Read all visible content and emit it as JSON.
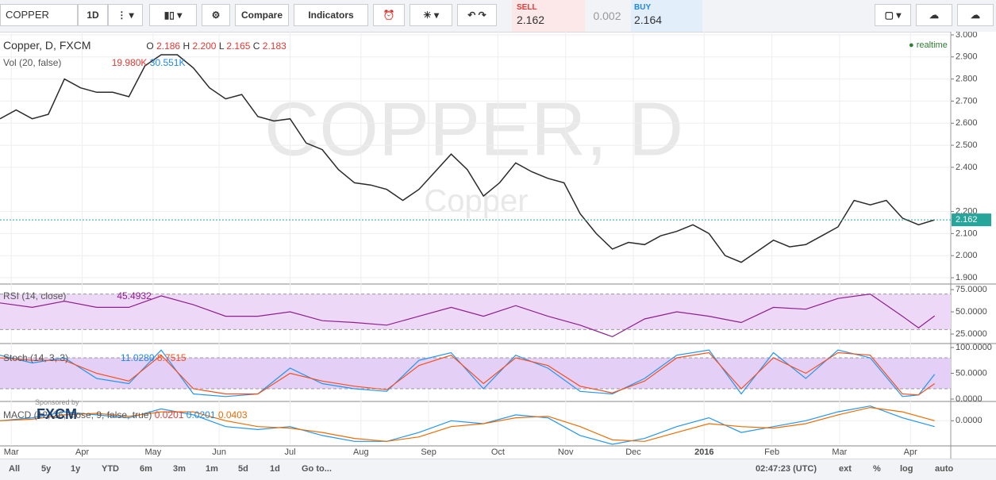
{
  "toolbar": {
    "symbol": "COPPER",
    "interval": "1D",
    "compare": "Compare",
    "indicators": "Indicators",
    "sell_label": "SELL",
    "sell": "2.162",
    "spread": "0.002",
    "buy_label": "BUY",
    "buy": "2.164"
  },
  "legend": {
    "title": "Copper, D, FXCM",
    "o_label": "O",
    "o": "2.186",
    "h_label": "H",
    "h": "2.200",
    "l_label": "L",
    "l": "2.165",
    "c_label": "C",
    "c": "2.183",
    "vol": "Vol (20, false)",
    "vol1": "19.980K",
    "vol2": "30.551K",
    "realtime": "realtime",
    "rsi": "RSI (14, close)",
    "rsi_value": "45.4932",
    "stoch": "Stoch (14, 3, 3)",
    "stoch_k": "11.0280",
    "stoch_d": "8.7515",
    "macd": "MACD (12, 26, close, 9, false, true)",
    "macd_1": "0.0201",
    "macd_2": "0.0201",
    "macd_3": "0.0403"
  },
  "watermark": {
    "symbol": "COPPER, D",
    "name": "Copper"
  },
  "sponsor": {
    "text": "Sponsored by",
    "brand": "FXCM"
  },
  "chart_data": [
    {
      "type": "line",
      "title": "Copper, D, FXCM",
      "x": [
        0,
        1,
        2,
        3,
        4,
        5,
        6,
        7,
        8,
        9,
        10,
        11,
        12,
        13,
        14,
        15,
        16,
        17,
        18,
        19,
        20,
        21,
        22,
        23,
        24,
        25,
        26,
        27,
        28,
        29,
        30,
        31,
        32,
        33,
        34,
        35,
        36,
        37,
        38,
        39,
        40,
        41,
        42,
        43,
        44,
        45,
        46,
        47,
        48,
        49,
        50,
        51,
        52,
        53,
        54,
        55,
        56,
        57,
        58
      ],
      "series": [
        {
          "name": "Copper",
          "color": "#2a2a2a",
          "values": [
            2.62,
            2.66,
            2.62,
            2.64,
            2.8,
            2.76,
            2.74,
            2.74,
            2.72,
            2.86,
            2.91,
            2.91,
            2.85,
            2.76,
            2.71,
            2.73,
            2.63,
            2.61,
            2.62,
            2.51,
            2.48,
            2.39,
            2.33,
            2.32,
            2.3,
            2.25,
            2.3,
            2.38,
            2.46,
            2.39,
            2.27,
            2.33,
            2.42,
            2.38,
            2.35,
            2.33,
            2.19,
            2.1,
            2.03,
            2.06,
            2.05,
            2.09,
            2.11,
            2.14,
            2.1,
            2.0,
            1.97,
            2.02,
            2.07,
            2.04,
            2.05,
            2.09,
            2.13,
            2.25,
            2.23,
            2.25,
            2.17,
            2.14,
            2.162
          ]
        }
      ],
      "xlim": [
        0,
        59
      ],
      "xticks": [
        {
          "value": 0.7,
          "label": "Mar"
        },
        {
          "value": 5.1,
          "label": "Apr"
        },
        {
          "value": 9.5,
          "label": "May"
        },
        {
          "value": 13.6,
          "label": "Jun"
        },
        {
          "value": 18.0,
          "label": "Jul"
        },
        {
          "value": 22.4,
          "label": "Aug"
        },
        {
          "value": 26.6,
          "label": "Sep"
        },
        {
          "value": 30.9,
          "label": "Oct"
        },
        {
          "value": 35.1,
          "label": "Nov"
        },
        {
          "value": 39.3,
          "label": "Dec"
        },
        {
          "value": 43.7,
          "label": "2016"
        },
        {
          "value": 47.9,
          "label": "Feb"
        },
        {
          "value": 52.1,
          "label": "Mar"
        },
        {
          "value": 56.5,
          "label": "Apr"
        }
      ],
      "ylim": [
        1.875,
        3.007
      ],
      "yticks": [
        {
          "value": 1.9,
          "label": "1.900"
        },
        {
          "value": 2.0,
          "label": "2.000"
        },
        {
          "value": 2.1,
          "label": "2.100"
        },
        {
          "value": 2.2,
          "label": "2.200"
        },
        {
          "value": 2.4,
          "label": "2.400"
        },
        {
          "value": 2.5,
          "label": "2.500"
        },
        {
          "value": 2.6,
          "label": "2.600"
        },
        {
          "value": 2.7,
          "label": "2.700"
        },
        {
          "value": 2.8,
          "label": "2.800"
        },
        {
          "value": 2.9,
          "label": "2.900"
        },
        {
          "value": 3.0,
          "label": "3.000"
        }
      ],
      "grid": true
    },
    {
      "type": "line",
      "title": "RSI (14, close)",
      "x": [
        0,
        2,
        4,
        6,
        8,
        10,
        12,
        14,
        16,
        18,
        20,
        22,
        24,
        26,
        28,
        30,
        32,
        34,
        36,
        38,
        40,
        42,
        44,
        46,
        48,
        50,
        52,
        54,
        56,
        57,
        58
      ],
      "series": [
        {
          "name": "RSI",
          "color": "#8e1f8e",
          "values": [
            60,
            55,
            62,
            55,
            55,
            68,
            58,
            45,
            45,
            50,
            40,
            38,
            35,
            45,
            55,
            45,
            57,
            45,
            35,
            22,
            42,
            50,
            45,
            38,
            55,
            53,
            65,
            70,
            45,
            32,
            45.5
          ]
        }
      ],
      "xlim": [
        0,
        59
      ],
      "ylim": [
        15.2,
        79.5
      ],
      "yticks": [
        {
          "value": 25,
          "label": "25.0000"
        },
        {
          "value": 50,
          "label": "50.0000"
        },
        {
          "value": 75,
          "label": "75.0000"
        }
      ],
      "band": [
        30,
        70
      ],
      "band_color": "#eed8f7",
      "grid": true
    },
    {
      "type": "line",
      "title": "Stoch (14, 3, 3)",
      "x": [
        0,
        2,
        4,
        6,
        8,
        10,
        12,
        14,
        16,
        18,
        20,
        22,
        24,
        26,
        28,
        30,
        32,
        34,
        36,
        38,
        40,
        42,
        44,
        46,
        48,
        50,
        52,
        54,
        56,
        57,
        58
      ],
      "series": [
        {
          "name": "%K",
          "color": "#2196f3",
          "values": [
            85,
            70,
            80,
            40,
            30,
            95,
            10,
            5,
            10,
            60,
            30,
            20,
            15,
            75,
            90,
            20,
            85,
            60,
            15,
            10,
            40,
            85,
            95,
            10,
            90,
            40,
            95,
            80,
            5,
            8,
            48
          ]
        },
        {
          "name": "%D",
          "color": "#f4511e",
          "values": [
            80,
            75,
            75,
            50,
            35,
            85,
            20,
            10,
            10,
            50,
            35,
            25,
            18,
            65,
            85,
            30,
            80,
            65,
            25,
            12,
            35,
            80,
            90,
            20,
            80,
            50,
            90,
            85,
            10,
            8,
            30
          ]
        }
      ],
      "xlim": [
        0,
        59
      ],
      "ylim": [
        -4.6,
        104.6
      ],
      "yticks": [
        {
          "value": 0,
          "label": "0.0000"
        },
        {
          "value": 50,
          "label": "50.0000"
        },
        {
          "value": 100,
          "label": "100.0000"
        }
      ],
      "band": [
        20,
        80
      ],
      "band_color": "#e4cff7",
      "grid": true
    },
    {
      "type": "line",
      "title": "MACD (12, 26, close, 9, false, true)",
      "x": [
        0,
        2,
        4,
        6,
        8,
        10,
        12,
        14,
        16,
        18,
        20,
        22,
        24,
        26,
        28,
        30,
        32,
        34,
        36,
        38,
        40,
        42,
        44,
        46,
        48,
        50,
        52,
        54,
        56,
        58
      ],
      "series": [
        {
          "name": "MACD",
          "color": "#2196f3",
          "values": [
            0.0,
            0.01,
            0.03,
            0.02,
            0.01,
            0.04,
            0.02,
            -0.02,
            -0.03,
            -0.02,
            -0.05,
            -0.07,
            -0.07,
            -0.04,
            0.0,
            -0.01,
            0.02,
            0.01,
            -0.05,
            -0.08,
            -0.06,
            -0.02,
            0.01,
            -0.04,
            -0.02,
            0.0,
            0.03,
            0.05,
            0.01,
            -0.02
          ]
        },
        {
          "name": "Signal",
          "color": "#ef6c00",
          "values": [
            0.0,
            0.005,
            0.02,
            0.025,
            0.015,
            0.03,
            0.03,
            0.0,
            -0.02,
            -0.025,
            -0.04,
            -0.06,
            -0.07,
            -0.055,
            -0.02,
            -0.01,
            0.01,
            0.015,
            -0.02,
            -0.065,
            -0.07,
            -0.04,
            -0.01,
            -0.02,
            -0.025,
            -0.01,
            0.02,
            0.045,
            0.03,
            0.0
          ]
        }
      ],
      "xlim": [
        0,
        59
      ],
      "ylim": [
        -0.08,
        0.06
      ],
      "yticks": [
        {
          "value": 0,
          "label": "0.0000"
        }
      ],
      "grid": true
    }
  ],
  "bottom": {
    "ranges": [
      "All",
      "5y",
      "1y",
      "YTD",
      "6m",
      "3m",
      "1m",
      "5d",
      "1d",
      "Go to..."
    ],
    "clock": "02:47:23 (UTC)",
    "options": [
      "ext",
      "%",
      "log",
      "auto"
    ]
  }
}
